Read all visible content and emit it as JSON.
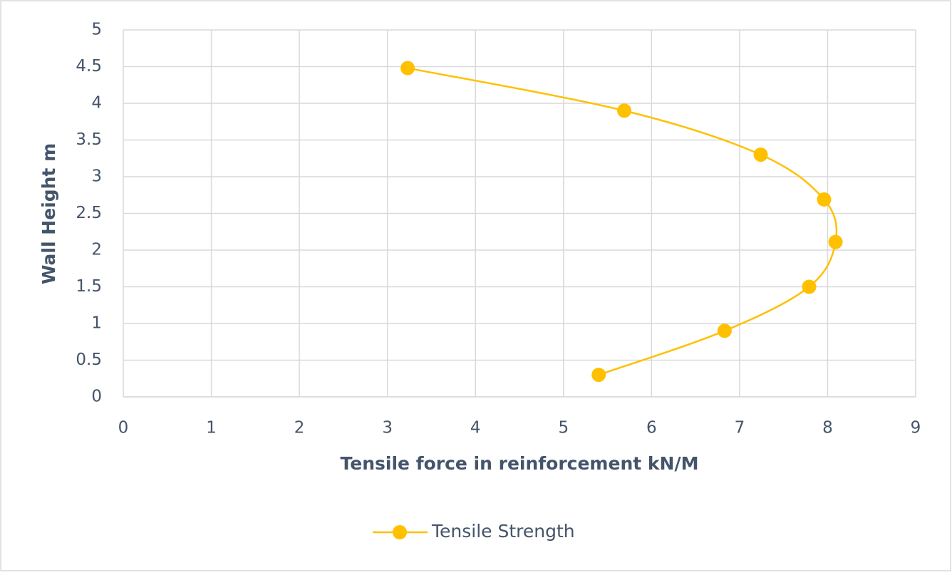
{
  "chart_data": {
    "type": "scatter",
    "x_label": "Tensile force in reinforcement kN/M",
    "y_label": "Wall Height m",
    "series": [
      {
        "name": "Tensile Strength",
        "color": "#ffc000",
        "x": [
          3.23,
          5.69,
          7.24,
          7.96,
          8.09,
          7.79,
          6.83,
          5.4
        ],
        "values": [
          4.48,
          3.9,
          3.3,
          2.69,
          2.11,
          1.5,
          0.9,
          0.3
        ]
      }
    ],
    "xlim": [
      0,
      9
    ],
    "xticks": [
      0,
      1,
      2,
      3,
      4,
      5,
      6,
      7,
      8,
      9
    ],
    "ylim": [
      0,
      5
    ],
    "yticks": [
      0,
      0.5,
      1,
      1.5,
      2,
      2.5,
      3,
      3.5,
      4,
      4.5,
      5
    ],
    "grid": true,
    "smooth": true,
    "legend": "bottom"
  }
}
